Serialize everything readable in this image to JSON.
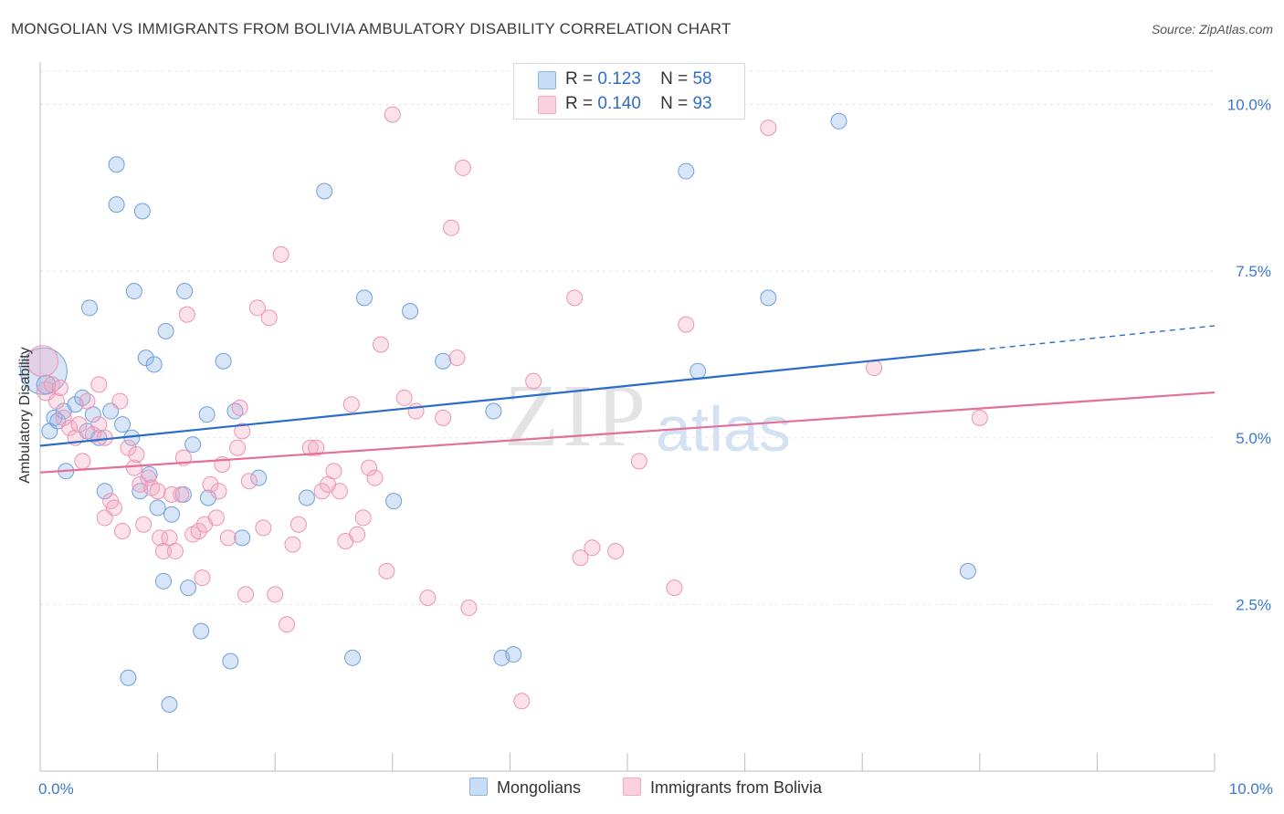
{
  "title": "MONGOLIAN VS IMMIGRANTS FROM BOLIVIA AMBULATORY DISABILITY CORRELATION CHART",
  "source": "Source: ZipAtlas.com",
  "watermark": {
    "zip": "ZIP",
    "atlas": "atlas"
  },
  "legend": {
    "rows": [
      {
        "r_label": "R =",
        "r_value": "0.123",
        "n_label": "N =",
        "n_value": "58"
      },
      {
        "r_label": "R =",
        "r_value": "0.140",
        "n_label": "N =",
        "n_value": "93"
      }
    ]
  },
  "bottom_legend": [
    "Mongolians",
    "Immigrants from Bolivia"
  ],
  "chart_data": {
    "type": "scatter",
    "title": "MONGOLIAN VS IMMIGRANTS FROM BOLIVIA AMBULATORY DISABILITY CORRELATION CHART",
    "xlabel": "",
    "ylabel": "Ambulatory Disability",
    "xlim": [
      0,
      10
    ],
    "ylim": [
      0,
      10.5
    ],
    "x_tick_labels": [
      "0.0%",
      "10.0%"
    ],
    "y_tick_labels": [
      "2.5%",
      "5.0%",
      "7.5%",
      "10.0%"
    ],
    "y_ticks": [
      2.5,
      5.0,
      7.5,
      10.0
    ],
    "grid": true,
    "colors": {
      "Mongolians": "#8db4e8",
      "Immigrants from Bolivia": "#f4a9c2",
      "Mongolians_line": "#2a6dc9",
      "Immigrants from Bolivia_line": "#e36f9b",
      "tick_label": "#3b78d0"
    },
    "series": [
      {
        "name": "Mongolians",
        "trend": {
          "x0": 0.0,
          "y0": 4.88,
          "x1": 8.0,
          "y1": 6.32,
          "dashed_to_x": 10.0,
          "dashed_to_y": 6.68
        },
        "points": [
          [
            0.03,
            6.0,
            30
          ],
          [
            0.05,
            5.8,
            12
          ],
          [
            0.08,
            5.1,
            10
          ],
          [
            0.12,
            5.3,
            10
          ],
          [
            0.15,
            5.25,
            10
          ],
          [
            0.2,
            5.4,
            10
          ],
          [
            0.22,
            4.5,
            10
          ],
          [
            0.3,
            5.5,
            10
          ],
          [
            0.36,
            5.6,
            10
          ],
          [
            0.4,
            5.1,
            10
          ],
          [
            0.42,
            6.95,
            10
          ],
          [
            0.45,
            5.35,
            10
          ],
          [
            0.5,
            5.0,
            10
          ],
          [
            0.55,
            4.2,
            10
          ],
          [
            0.6,
            5.4,
            10
          ],
          [
            0.65,
            9.1,
            10
          ],
          [
            0.65,
            8.5,
            10
          ],
          [
            0.7,
            5.2,
            10
          ],
          [
            0.75,
            1.4,
            10
          ],
          [
            0.78,
            5.0,
            10
          ],
          [
            0.8,
            7.2,
            10
          ],
          [
            0.85,
            4.2,
            10
          ],
          [
            0.87,
            8.4,
            10
          ],
          [
            0.9,
            6.2,
            10
          ],
          [
            0.93,
            4.45,
            10
          ],
          [
            0.97,
            6.1,
            10
          ],
          [
            1.0,
            3.95,
            10
          ],
          [
            1.05,
            2.85,
            10
          ],
          [
            1.07,
            6.6,
            10
          ],
          [
            1.1,
            1.0,
            10
          ],
          [
            1.12,
            3.85,
            10
          ],
          [
            1.22,
            4.15,
            10
          ],
          [
            1.23,
            7.2,
            10
          ],
          [
            1.26,
            2.75,
            10
          ],
          [
            1.3,
            4.9,
            10
          ],
          [
            1.37,
            2.1,
            10
          ],
          [
            1.42,
            5.35,
            10
          ],
          [
            1.43,
            4.1,
            10
          ],
          [
            1.56,
            6.15,
            10
          ],
          [
            1.62,
            1.65,
            10
          ],
          [
            1.66,
            5.4,
            10
          ],
          [
            1.72,
            3.5,
            10
          ],
          [
            1.86,
            4.4,
            10
          ],
          [
            2.27,
            4.1,
            10
          ],
          [
            2.42,
            8.7,
            10
          ],
          [
            2.76,
            7.1,
            10
          ],
          [
            2.66,
            1.7,
            10
          ],
          [
            3.01,
            4.05,
            10
          ],
          [
            3.15,
            6.9,
            10
          ],
          [
            3.43,
            6.15,
            10
          ],
          [
            3.86,
            5.4,
            10
          ],
          [
            3.93,
            1.7,
            10
          ],
          [
            4.03,
            1.75,
            10
          ],
          [
            5.5,
            9.0,
            10
          ],
          [
            5.6,
            6.0,
            10
          ],
          [
            6.2,
            7.1,
            10
          ],
          [
            6.8,
            9.75,
            10
          ],
          [
            7.9,
            3.0,
            10
          ]
        ]
      },
      {
        "name": "Immigrants from Bolivia",
        "trend": {
          "x0": 0.0,
          "y0": 4.48,
          "x1": 10.0,
          "y1": 5.68
        },
        "points": [
          [
            0.02,
            6.15,
            20
          ],
          [
            0.05,
            5.7,
            12
          ],
          [
            0.1,
            5.8,
            10
          ],
          [
            0.14,
            5.55,
            10
          ],
          [
            0.17,
            5.75,
            10
          ],
          [
            0.2,
            5.3,
            10
          ],
          [
            0.25,
            5.15,
            10
          ],
          [
            0.3,
            5.0,
            10
          ],
          [
            0.33,
            5.2,
            10
          ],
          [
            0.36,
            4.65,
            10
          ],
          [
            0.4,
            5.55,
            10
          ],
          [
            0.45,
            5.05,
            10
          ],
          [
            0.5,
            5.2,
            10
          ],
          [
            0.5,
            5.8,
            10
          ],
          [
            0.55,
            5.0,
            10
          ],
          [
            0.55,
            3.8,
            10
          ],
          [
            0.6,
            4.05,
            10
          ],
          [
            0.63,
            3.95,
            10
          ],
          [
            0.68,
            5.55,
            10
          ],
          [
            0.7,
            3.6,
            10
          ],
          [
            0.75,
            4.85,
            10
          ],
          [
            0.8,
            4.55,
            10
          ],
          [
            0.82,
            4.75,
            10
          ],
          [
            0.85,
            4.3,
            10
          ],
          [
            0.88,
            3.7,
            10
          ],
          [
            0.92,
            4.4,
            10
          ],
          [
            0.95,
            4.25,
            10
          ],
          [
            1.0,
            4.2,
            10
          ],
          [
            1.02,
            3.5,
            10
          ],
          [
            1.05,
            3.3,
            10
          ],
          [
            1.1,
            3.5,
            10
          ],
          [
            1.12,
            4.15,
            10
          ],
          [
            1.15,
            3.3,
            10
          ],
          [
            1.2,
            4.15,
            10
          ],
          [
            1.22,
            4.7,
            10
          ],
          [
            1.25,
            6.85,
            10
          ],
          [
            1.3,
            3.55,
            10
          ],
          [
            1.35,
            3.6,
            10
          ],
          [
            1.38,
            2.9,
            10
          ],
          [
            1.4,
            3.7,
            10
          ],
          [
            1.45,
            4.3,
            10
          ],
          [
            1.5,
            3.8,
            10
          ],
          [
            1.52,
            4.2,
            10
          ],
          [
            1.55,
            4.6,
            10
          ],
          [
            1.6,
            3.5,
            10
          ],
          [
            1.68,
            4.85,
            10
          ],
          [
            1.7,
            5.45,
            10
          ],
          [
            1.72,
            5.1,
            10
          ],
          [
            1.75,
            2.65,
            10
          ],
          [
            1.78,
            4.35,
            10
          ],
          [
            1.85,
            6.95,
            10
          ],
          [
            1.9,
            3.65,
            10
          ],
          [
            1.95,
            6.8,
            10
          ],
          [
            2.0,
            2.65,
            10
          ],
          [
            2.05,
            7.75,
            10
          ],
          [
            2.1,
            2.2,
            10
          ],
          [
            2.15,
            3.4,
            10
          ],
          [
            2.2,
            3.7,
            10
          ],
          [
            2.3,
            4.85,
            10
          ],
          [
            2.35,
            4.85,
            10
          ],
          [
            2.4,
            4.2,
            10
          ],
          [
            2.45,
            4.3,
            10
          ],
          [
            2.5,
            4.5,
            10
          ],
          [
            2.55,
            4.2,
            10
          ],
          [
            2.6,
            3.45,
            10
          ],
          [
            2.65,
            5.5,
            10
          ],
          [
            2.7,
            3.55,
            10
          ],
          [
            2.75,
            3.8,
            10
          ],
          [
            2.8,
            4.55,
            10
          ],
          [
            2.85,
            4.4,
            10
          ],
          [
            2.9,
            6.4,
            10
          ],
          [
            2.95,
            3.0,
            10
          ],
          [
            3.0,
            9.85,
            10
          ],
          [
            3.1,
            5.6,
            10
          ],
          [
            3.2,
            5.4,
            10
          ],
          [
            3.3,
            2.6,
            10
          ],
          [
            3.43,
            5.3,
            10
          ],
          [
            3.5,
            8.15,
            10
          ],
          [
            3.55,
            6.2,
            10
          ],
          [
            3.6,
            9.05,
            10
          ],
          [
            3.65,
            2.45,
            10
          ],
          [
            4.1,
            1.05,
            10
          ],
          [
            4.2,
            5.85,
            10
          ],
          [
            4.55,
            7.1,
            10
          ],
          [
            4.6,
            3.2,
            10
          ],
          [
            4.7,
            3.35,
            10
          ],
          [
            4.9,
            3.3,
            10
          ],
          [
            5.1,
            4.65,
            10
          ],
          [
            5.4,
            2.75,
            10
          ],
          [
            5.5,
            6.7,
            10
          ],
          [
            6.2,
            9.65,
            10
          ],
          [
            7.1,
            6.05,
            10
          ],
          [
            8.0,
            5.3,
            10
          ]
        ]
      }
    ]
  }
}
